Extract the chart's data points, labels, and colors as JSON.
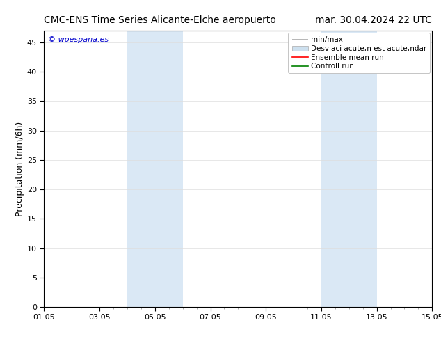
{
  "title_left": "CMC-ENS Time Series Alicante-Elche aeropuerto",
  "title_right": "mar. 30.04.2024 22 UTC",
  "ylabel": "Precipitation (mm/6h)",
  "xlabel_ticks": [
    "01.05",
    "03.05",
    "05.05",
    "07.05",
    "09.05",
    "11.05",
    "13.05",
    "15.05"
  ],
  "tick_positions": [
    0,
    2,
    4,
    6,
    8,
    10,
    12,
    14
  ],
  "xlim": [
    0,
    14
  ],
  "ylim": [
    0,
    47
  ],
  "yticks": [
    0,
    5,
    10,
    15,
    20,
    25,
    30,
    35,
    40,
    45
  ],
  "watermark": "© woespana.es",
  "watermark_color": "#0000cc",
  "shaded_regions": [
    {
      "xmin": 3.0,
      "xmax": 5.0,
      "color": "#dae8f5"
    },
    {
      "xmin": 10.0,
      "xmax": 12.0,
      "color": "#dae8f5"
    }
  ],
  "legend_labels": [
    "min/max",
    "Desviaci acute;n est acute;ndar",
    "Ensemble mean run",
    "Controll run"
  ],
  "legend_colors_line": [
    "#999999",
    null,
    "#ff0000",
    "#008000"
  ],
  "legend_patch_color": "#cde0ef",
  "bg_color": "#ffffff",
  "plot_bg_color": "#ffffff",
  "title_fontsize": 10,
  "tick_fontsize": 8,
  "ylabel_fontsize": 9,
  "legend_fontsize": 7.5
}
